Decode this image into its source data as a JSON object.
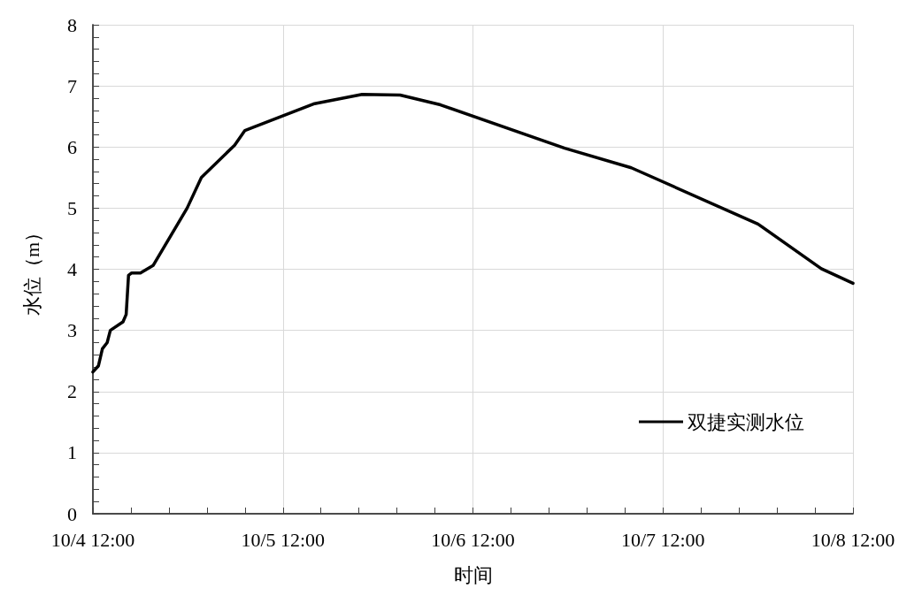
{
  "chart_data": {
    "type": "line",
    "xlabel": "时间",
    "ylabel": "水位（m）",
    "xlim": [
      "--10-04T12:00",
      "--10-08T12:00"
    ],
    "xticks": [
      {
        "value": "--10-04T12:00",
        "label": "10/4 12:00"
      },
      {
        "value": "--10-04T16:48",
        "label": null
      },
      {
        "value": "--10-04T21:36",
        "label": null
      },
      {
        "value": "--10-05T02:24",
        "label": null
      },
      {
        "value": "--10-05T07:12",
        "label": null
      },
      {
        "value": "--10-05T12:00",
        "label": "10/5 12:00"
      },
      {
        "value": "--10-05T16:48",
        "label": null
      },
      {
        "value": "--10-05T21:36",
        "label": null
      },
      {
        "value": "--10-06T02:24",
        "label": null
      },
      {
        "value": "--10-06T07:12",
        "label": null
      },
      {
        "value": "--10-06T12:00",
        "label": "10/6 12:00"
      },
      {
        "value": "--10-06T16:48",
        "label": null
      },
      {
        "value": "--10-06T21:36",
        "label": null
      },
      {
        "value": "--10-07T02:24",
        "label": null
      },
      {
        "value": "--10-07T07:12",
        "label": null
      },
      {
        "value": "--10-07T12:00",
        "label": "10/7 12:00"
      },
      {
        "value": "--10-07T16:48",
        "label": null
      },
      {
        "value": "--10-07T21:36",
        "label": null
      },
      {
        "value": "--10-08T02:24",
        "label": null
      },
      {
        "value": "--10-08T07:12",
        "label": null
      },
      {
        "value": "--10-08T12:00",
        "label": "10/8 12:00"
      }
    ],
    "ylim": [
      0,
      8
    ],
    "yticks": [
      0,
      {
        "value": 0.2,
        "label": null
      },
      {
        "value": 0.4,
        "label": null
      },
      {
        "value": 0.6,
        "label": null
      },
      {
        "value": 0.8,
        "label": null
      },
      1,
      {
        "value": 1.2,
        "label": null
      },
      {
        "value": 1.4,
        "label": null
      },
      {
        "value": 1.6,
        "label": null
      },
      {
        "value": 1.8,
        "label": null
      },
      2,
      {
        "value": 2.2,
        "label": null
      },
      {
        "value": 2.4,
        "label": null
      },
      {
        "value": 2.6,
        "label": null
      },
      {
        "value": 2.8,
        "label": null
      },
      3,
      {
        "value": 3.2,
        "label": null
      },
      {
        "value": 3.4,
        "label": null
      },
      {
        "value": 3.6,
        "label": null
      },
      {
        "value": 3.8,
        "label": null
      },
      4,
      {
        "value": 4.2,
        "label": null
      },
      {
        "value": 4.4,
        "label": null
      },
      {
        "value": 4.6,
        "label": null
      },
      {
        "value": 4.8,
        "label": null
      },
      5,
      {
        "value": 5.2,
        "label": null
      },
      {
        "value": 5.4,
        "label": null
      },
      {
        "value": 5.6,
        "label": null
      },
      {
        "value": 5.8,
        "label": null
      },
      6,
      {
        "value": 6.2,
        "label": null
      },
      {
        "value": 6.4,
        "label": null
      },
      {
        "value": 6.6,
        "label": null
      },
      {
        "value": 6.8,
        "label": null
      },
      7,
      {
        "value": 7.2,
        "label": null
      },
      {
        "value": 7.4,
        "label": null
      },
      {
        "value": 7.6,
        "label": null
      },
      {
        "value": 7.8,
        "label": null
      },
      8
    ],
    "grid": true,
    "legend": "bottom right",
    "marker": "none",
    "line_style": "solid",
    "series": [
      {
        "name": "双捷实测水位",
        "color": "#000000",
        "x": [
          "--10-04T12:00",
          "--10-04T12:42",
          "--10-04T13:12",
          "--10-04T13:48",
          "--10-04T14:12",
          "--10-04T15:48",
          "--10-04T16:12",
          "--10-04T16:30",
          "--10-04T16:54",
          "--10-04T18:00",
          "--10-04T19:36",
          "--10-04T23:54",
          "--10-05T01:42",
          "--10-05T05:54",
          "--10-05T07:12",
          "--10-05T08:12",
          "--10-05T16:00",
          "--10-05T22:00",
          "--10-06T02:48",
          "--10-06T07:54",
          "--10-06T23:36",
          "--10-07T08:00",
          "--10-08T00:00",
          "--10-08T08:00",
          "--10-08T12:00"
        ],
        "values": [
          2.32,
          2.42,
          2.7,
          2.8,
          3,
          3.14,
          3.26,
          3.9,
          3.94,
          3.94,
          4.06,
          5.0,
          5.5,
          6.03,
          6.27,
          6.32,
          6.71,
          6.86,
          6.85,
          6.69,
          5.98,
          5.66,
          4.74,
          4.01,
          3.77
        ]
      }
    ]
  }
}
